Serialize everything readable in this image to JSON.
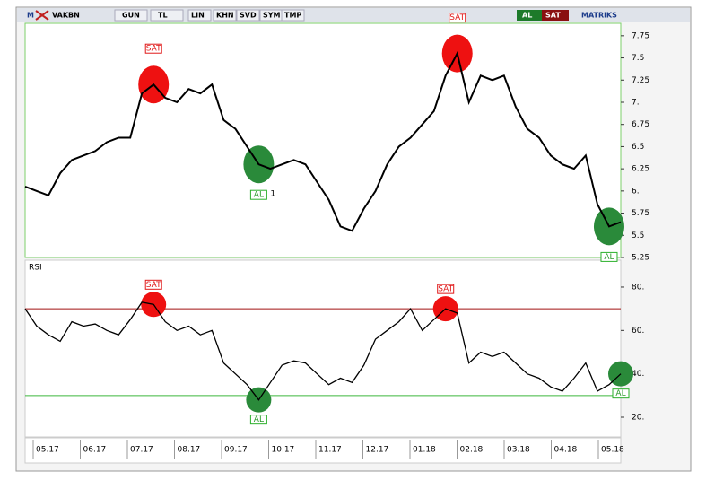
{
  "toolbar": {
    "logo": "M",
    "symbol": "VAKBN",
    "buttons": [
      "GUN",
      "TL",
      "LIN",
      "KHN",
      "SVD",
      "SYM",
      "TMP"
    ],
    "buy": "AL",
    "sell": "SAT",
    "brand": "MATRiKS"
  },
  "x_axis_labels": [
    "05.17",
    "06.17",
    "07.17",
    "08.17",
    "09.17",
    "10.17",
    "11.17",
    "12.17",
    "01.18",
    "02.18",
    "03.18",
    "04.18",
    "05.18"
  ],
  "chart_data": [
    {
      "type": "line",
      "color": "#000000",
      "values": [
        6.05,
        6.0,
        5.95,
        6.2,
        6.35,
        6.4,
        6.45,
        6.55,
        6.6,
        6.6,
        7.1,
        7.2,
        7.05,
        7.0,
        7.15,
        7.1,
        7.2,
        6.8,
        6.7,
        6.5,
        6.3,
        6.25,
        6.3,
        6.35,
        6.3,
        6.1,
        5.9,
        5.6,
        5.55,
        5.8,
        6.0,
        6.3,
        6.5,
        6.6,
        6.75,
        6.9,
        7.3,
        7.55,
        7.0,
        7.3,
        7.25,
        7.3,
        6.95,
        6.7,
        6.6,
        6.4,
        6.3,
        6.25,
        6.4,
        5.85,
        5.6,
        5.65
      ],
      "ylim": [
        5.25,
        7.89
      ],
      "yticks": [
        {
          "value": 7.75,
          "label": "7.75"
        },
        7.5,
        7.25,
        {
          "value": 7,
          "label": "7."
        },
        6.75,
        6.5,
        6.25,
        {
          "value": 6,
          "label": "6."
        },
        5.75,
        5.5,
        5.25
      ],
      "annotations": [
        "SAT",
        "AL",
        "1",
        "SAT",
        "AL"
      ]
    },
    {
      "type": "line",
      "title": "RSI",
      "color": "#000000",
      "values": [
        70,
        62,
        58,
        55,
        64,
        62,
        63,
        60,
        58,
        65,
        73,
        72,
        64,
        60,
        62,
        58,
        60,
        45,
        40,
        35,
        28,
        36,
        44,
        46,
        45,
        40,
        35,
        38,
        36,
        44,
        56,
        60,
        64,
        70,
        60,
        65,
        70,
        68,
        45,
        50,
        48,
        50,
        45,
        40,
        38,
        34,
        32,
        38,
        45,
        32,
        35,
        40
      ],
      "ylim": [
        10.9,
        92.4
      ],
      "yticks": [
        {
          "value": 80,
          "label": "80."
        },
        {
          "value": 60,
          "label": "60."
        },
        {
          "value": 40,
          "label": "40."
        },
        {
          "value": 20,
          "label": "20."
        }
      ],
      "levels": [
        {
          "value": 70,
          "color": "#a01010"
        },
        {
          "value": 30,
          "color": "#3cb83c"
        }
      ],
      "annotations": [
        "SAT",
        "AL",
        "SAT",
        "AL"
      ]
    }
  ]
}
